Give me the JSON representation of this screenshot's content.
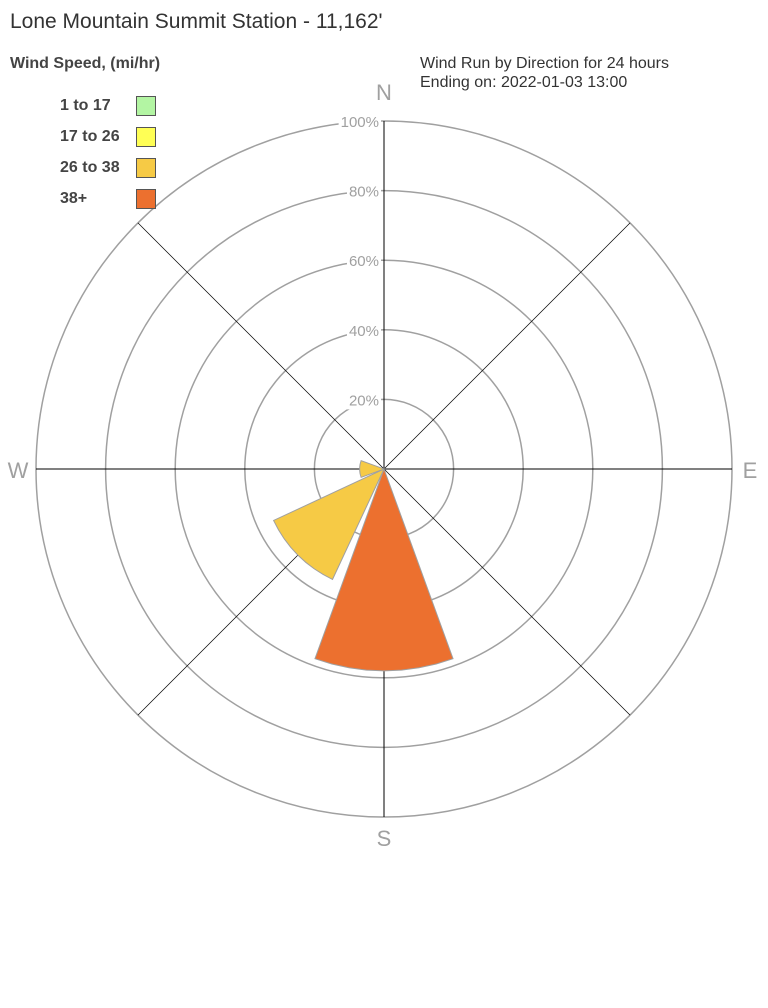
{
  "title": "Lone Mountain Summit Station - 11,162'",
  "legend_title": "Wind Speed, (mi/hr)",
  "subtitle_line1": "Wind Run by Direction for 24 hours",
  "subtitle_line2": "Ending on: 2022-01-03 13:00",
  "legend": [
    {
      "label": "1 to 17",
      "color": "#b3f5a3"
    },
    {
      "label": "17 to 26",
      "color": "#ffff55"
    },
    {
      "label": "26 to 38",
      "color": "#f6ca45"
    },
    {
      "label": "38+",
      "color": "#ec702f"
    }
  ],
  "chart_data": {
    "type": "wind-rose",
    "title": "Wind Run by Direction for 24 hours",
    "radial_unit": "%",
    "radial_range": [
      0,
      100
    ],
    "radial_ticks": [
      "20%",
      "40%",
      "60%",
      "80%",
      "100%"
    ],
    "radial_tick_values": [
      20,
      40,
      60,
      80,
      100
    ],
    "directions": [
      "N",
      "NE",
      "E",
      "SE",
      "S",
      "SW",
      "W",
      "NW"
    ],
    "compass_labels": [
      "N",
      "E",
      "S",
      "W"
    ],
    "grid": true,
    "legend_placement": "top-left",
    "petals": [
      {
        "direction": "W",
        "value": 7,
        "bin": "26 to 38",
        "color": "#f6ca45"
      },
      {
        "direction": "SW",
        "value": 35,
        "bin": "26 to 38",
        "color": "#f6ca45"
      },
      {
        "direction": "S",
        "value": 58,
        "bin": "38+",
        "color": "#ec702f"
      }
    ]
  }
}
